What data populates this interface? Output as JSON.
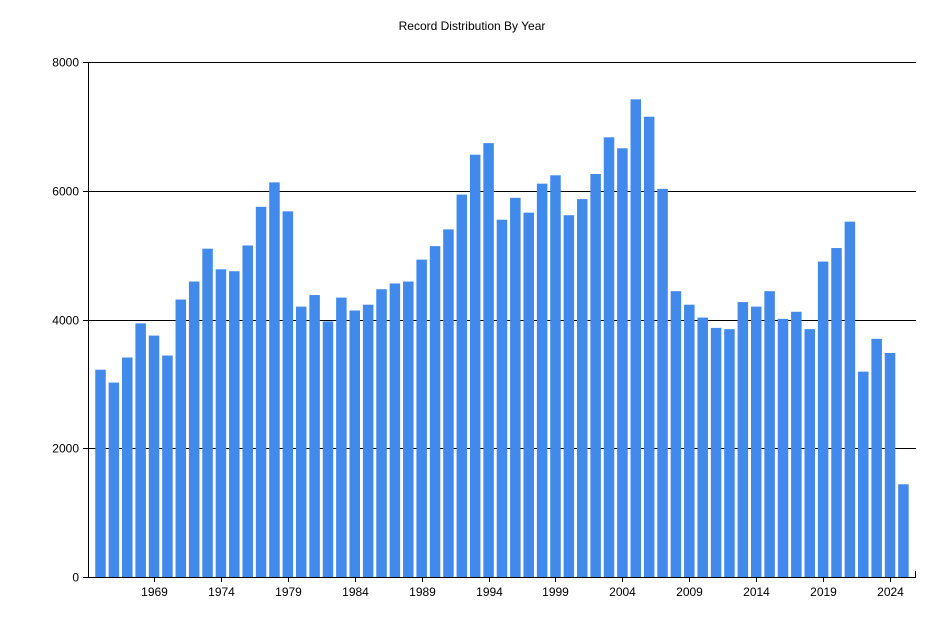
{
  "chart_data": {
    "type": "bar",
    "title": "Record Distribution By Year",
    "xlabel": "",
    "ylabel": "",
    "ylim": [
      0,
      8000
    ],
    "yticks": [
      0,
      2000,
      4000,
      6000,
      8000
    ],
    "xticks": [
      1969,
      1974,
      1979,
      1984,
      1989,
      1994,
      1999,
      2004,
      2009,
      2014,
      2019,
      2024
    ],
    "grid": true,
    "legend": "none",
    "bar_color": "#4189ea",
    "categories": [
      1965,
      1966,
      1967,
      1968,
      1969,
      1970,
      1971,
      1972,
      1973,
      1974,
      1975,
      1976,
      1977,
      1978,
      1979,
      1980,
      1981,
      1982,
      1983,
      1984,
      1985,
      1986,
      1987,
      1988,
      1989,
      1990,
      1991,
      1992,
      1993,
      1994,
      1995,
      1996,
      1997,
      1998,
      1999,
      2000,
      2001,
      2002,
      2003,
      2004,
      2005,
      2006,
      2007,
      2008,
      2009,
      2010,
      2011,
      2012,
      2013,
      2014,
      2015,
      2016,
      2017,
      2018,
      2019,
      2020,
      2021,
      2022,
      2023,
      2024,
      2025
    ],
    "values": [
      3220,
      3020,
      3410,
      3940,
      3750,
      3440,
      4310,
      4590,
      5100,
      4780,
      4750,
      5150,
      5750,
      6130,
      5680,
      4200,
      4380,
      3970,
      4340,
      4140,
      4230,
      4470,
      4560,
      4590,
      4930,
      5140,
      5400,
      5940,
      6560,
      6740,
      5550,
      5890,
      5660,
      6110,
      6240,
      5620,
      5870,
      6260,
      6830,
      6660,
      7420,
      7150,
      6030,
      4440,
      4230,
      4030,
      3870,
      3850,
      4270,
      4200,
      4440,
      4010,
      4120,
      3850,
      4900,
      5110,
      5520,
      3190,
      3700,
      3480,
      1440
    ]
  }
}
